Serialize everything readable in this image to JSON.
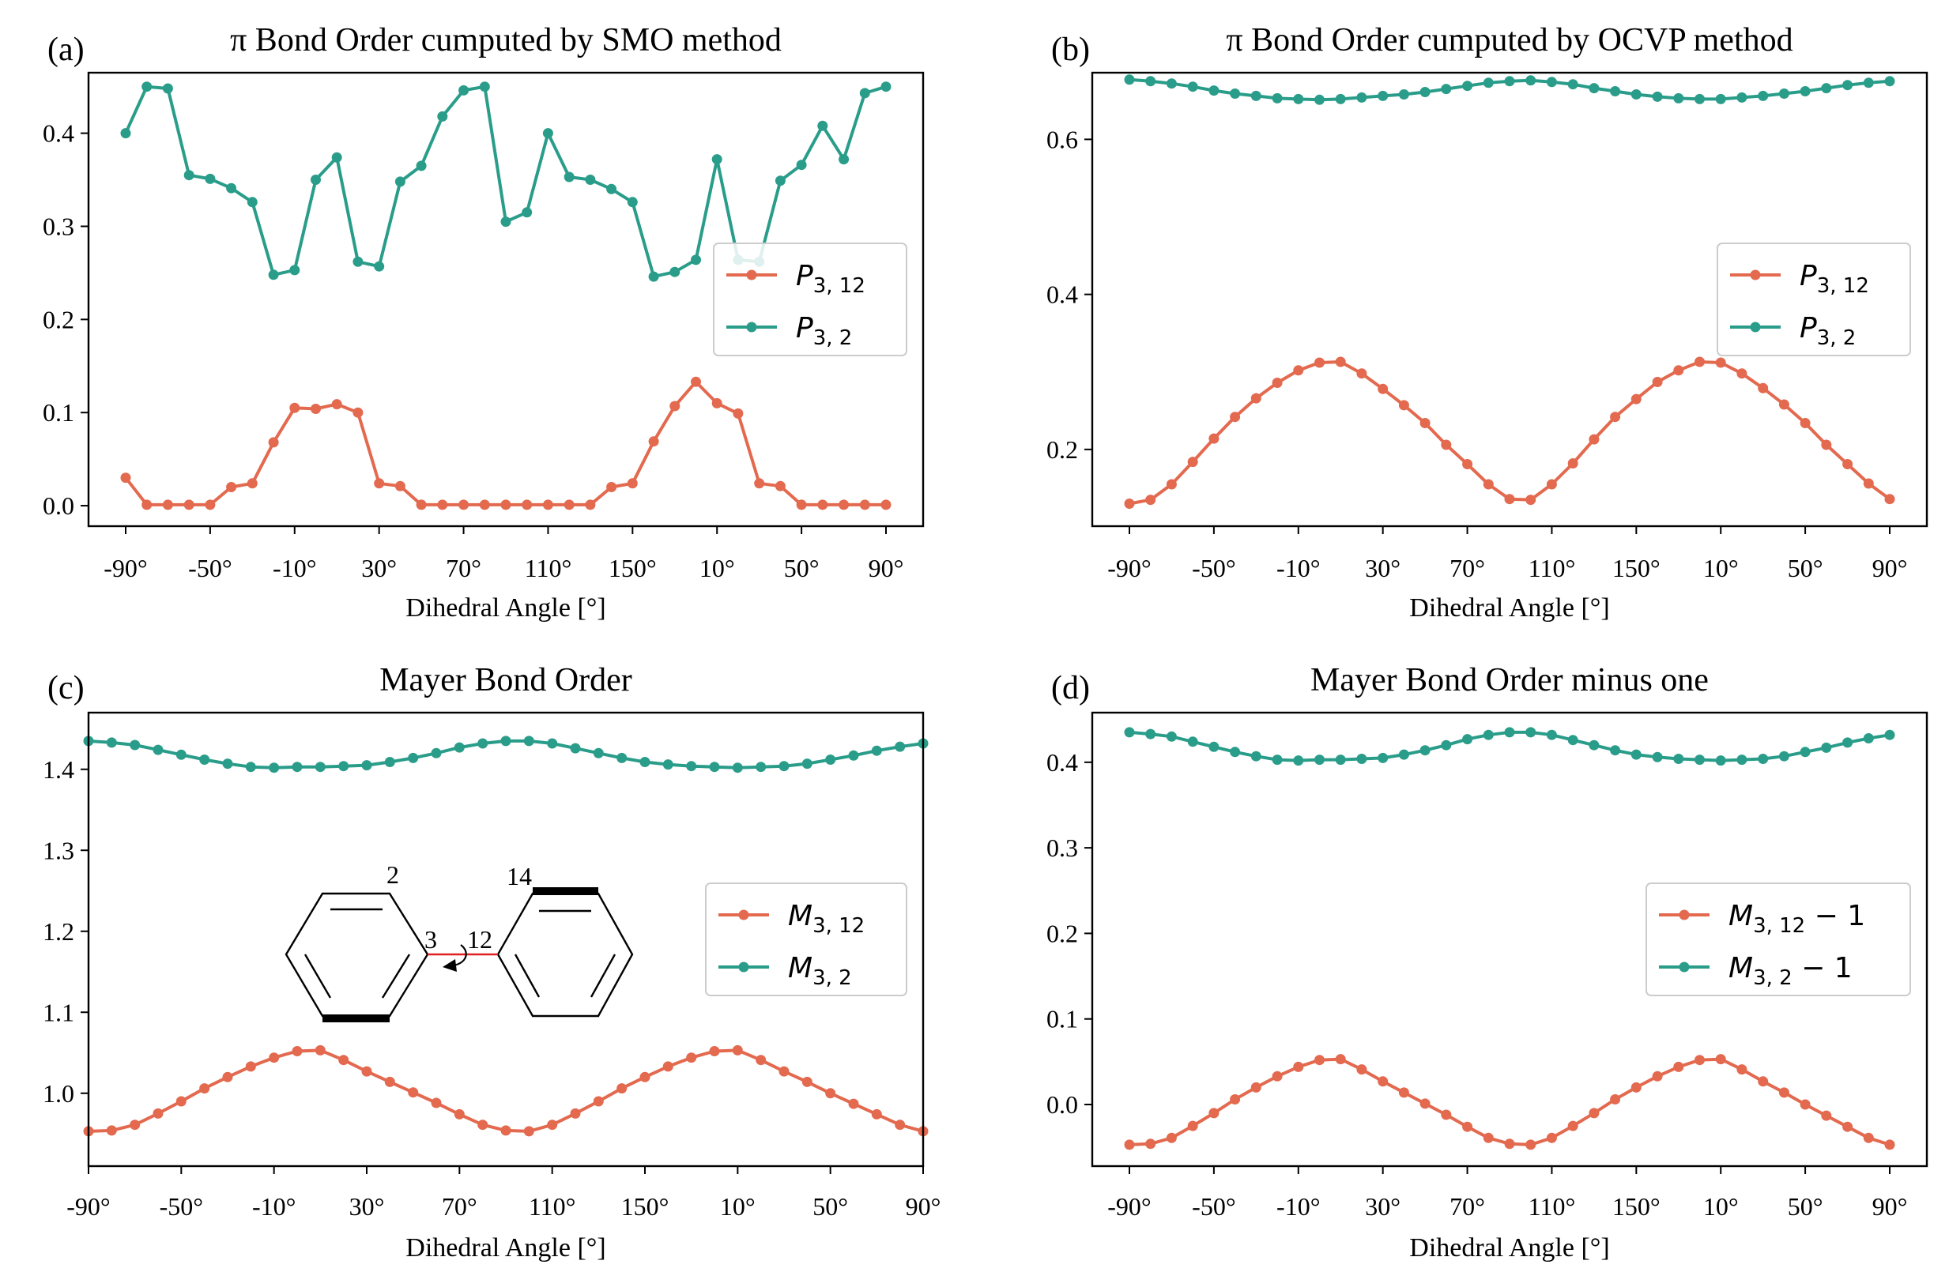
{
  "figure": {
    "colors": {
      "orange": "#e3694f",
      "teal": "#2a9d8a",
      "axis": "#000000",
      "legend_border": "#cccccc"
    }
  },
  "chart_data": [
    {
      "panel_label": "(a)",
      "type": "line",
      "title": "π Bond Order cumputed by SMO method",
      "xlabel": "Dihedral Angle [°]",
      "ylabel": "",
      "x": [
        -90,
        -85,
        -80,
        -75,
        -70,
        -65,
        -60,
        -55,
        -50,
        -45,
        -40,
        -35,
        -30,
        -25,
        -20,
        -15,
        -10,
        -5,
        0,
        5,
        10,
        15,
        20,
        25,
        30,
        35,
        40,
        45,
        50,
        55,
        60,
        65,
        70,
        75,
        80,
        85,
        90
      ],
      "xticks": [
        "-90°",
        "-50°",
        "-10°",
        "30°",
        "70°",
        "110°",
        "150°",
        "10°",
        "50°",
        "90°"
      ],
      "yticks": [
        "0.0",
        "0.1",
        "0.2",
        "0.3",
        "0.4"
      ],
      "ylim": [
        -0.022,
        0.465
      ],
      "legend_position": "center-right",
      "series": [
        {
          "name": "P_{3,12}",
          "label_base": "P",
          "label_sub": "3, 12",
          "color": "#e3694f",
          "values": [
            0.03,
            0.001,
            0.001,
            0.001,
            0.001,
            0.02,
            0.024,
            0.068,
            0.105,
            0.104,
            0.109,
            0.1,
            0.024,
            0.021,
            0.001,
            0.001,
            0.001,
            0.001,
            0.001,
            0.001,
            0.001,
            0.001,
            0.001,
            0.02,
            0.024,
            0.069,
            0.107,
            0.133,
            0.11,
            0.099,
            0.024,
            0.021,
            0.001,
            0.001,
            0.001,
            0.001,
            0.001
          ]
        },
        {
          "name": "P_{3,2}",
          "label_base": "P",
          "label_sub": "3, 2",
          "color": "#2a9d8a",
          "values": [
            0.4,
            0.45,
            0.448,
            0.355,
            0.351,
            0.341,
            0.326,
            0.248,
            0.253,
            0.35,
            0.374,
            0.262,
            0.257,
            0.348,
            0.365,
            0.418,
            0.446,
            0.45,
            0.305,
            0.315,
            0.4,
            0.353,
            0.35,
            0.34,
            0.326,
            0.246,
            0.251,
            0.264,
            0.372,
            0.264,
            0.262,
            0.349,
            0.366,
            0.408,
            0.372,
            0.443,
            0.45
          ]
        }
      ]
    },
    {
      "panel_label": "(b)",
      "type": "line",
      "title": "π Bond Order cumputed by OCVP method",
      "xlabel": "Dihedral Angle [°]",
      "ylabel": "",
      "x": [
        -90,
        -85,
        -80,
        -75,
        -70,
        -65,
        -60,
        -55,
        -50,
        -45,
        -40,
        -35,
        -30,
        -25,
        -20,
        -15,
        -10,
        -5,
        0,
        5,
        10,
        15,
        20,
        25,
        30,
        35,
        40,
        45,
        50,
        55,
        60,
        65,
        70,
        75,
        80,
        85,
        90
      ],
      "xticks": [
        "-90°",
        "-50°",
        "-10°",
        "30°",
        "70°",
        "110°",
        "150°",
        "10°",
        "50°",
        "90°"
      ],
      "yticks": [
        "0.2",
        "0.4",
        "0.6"
      ],
      "ylim": [
        0.101,
        0.686
      ],
      "legend_position": "center-right",
      "series": [
        {
          "name": "P_{3,12}",
          "label_base": "P",
          "label_sub": "3, 12",
          "color": "#e3694f",
          "values": [
            0.13,
            0.135,
            0.155,
            0.184,
            0.214,
            0.242,
            0.266,
            0.286,
            0.302,
            0.312,
            0.313,
            0.298,
            0.278,
            0.257,
            0.234,
            0.206,
            0.181,
            0.155,
            0.136,
            0.135,
            0.155,
            0.182,
            0.213,
            0.242,
            0.265,
            0.287,
            0.302,
            0.313,
            0.312,
            0.298,
            0.279,
            0.258,
            0.234,
            0.206,
            0.181,
            0.156,
            0.136
          ]
        },
        {
          "name": "P_{3,2}",
          "label_base": "P",
          "label_sub": "3, 2",
          "color": "#2a9d8a",
          "values": [
            0.677,
            0.675,
            0.672,
            0.668,
            0.663,
            0.659,
            0.656,
            0.653,
            0.652,
            0.651,
            0.652,
            0.654,
            0.656,
            0.658,
            0.661,
            0.665,
            0.669,
            0.673,
            0.675,
            0.676,
            0.674,
            0.671,
            0.666,
            0.662,
            0.658,
            0.655,
            0.653,
            0.652,
            0.652,
            0.654,
            0.656,
            0.659,
            0.662,
            0.666,
            0.67,
            0.673,
            0.675
          ]
        }
      ]
    },
    {
      "panel_label": "(c)",
      "type": "line",
      "title": "Mayer Bond Order",
      "xlabel": "Dihedral Angle [°]",
      "ylabel": "",
      "x": [
        -90,
        -85,
        -80,
        -75,
        -70,
        -65,
        -60,
        -55,
        -50,
        -45,
        -40,
        -35,
        -30,
        -25,
        -20,
        -15,
        -10,
        -5,
        0,
        5,
        10,
        15,
        20,
        25,
        30,
        35,
        40,
        45,
        50,
        55,
        60,
        65,
        70,
        75,
        80,
        85,
        90
      ],
      "xticks": [
        "-90°",
        "-50°",
        "-10°",
        "30°",
        "70°",
        "110°",
        "150°",
        "10°",
        "50°",
        "90°"
      ],
      "yticks": [
        "1.0",
        "1.1",
        "1.2",
        "1.3",
        "1.4"
      ],
      "ylim": [
        0.91,
        1.47
      ],
      "legend_position": "center-right",
      "series": [
        {
          "name": "M_{3,12}",
          "label_base": "M",
          "label_sub": "3, 12",
          "color": "#e3694f",
          "values": [
            0.953,
            0.954,
            0.961,
            0.975,
            0.99,
            1.006,
            1.02,
            1.033,
            1.044,
            1.052,
            1.053,
            1.041,
            1.027,
            1.014,
            1.001,
            0.988,
            0.974,
            0.961,
            0.954,
            0.953,
            0.961,
            0.975,
            0.99,
            1.006,
            1.02,
            1.033,
            1.044,
            1.052,
            1.053,
            1.041,
            1.027,
            1.014,
            1.0,
            0.987,
            0.974,
            0.961,
            0.953
          ]
        },
        {
          "name": "M_{3,2}",
          "label_base": "M",
          "label_sub": "3, 2",
          "color": "#2a9d8a",
          "values": [
            1.435,
            1.433,
            1.43,
            1.424,
            1.418,
            1.412,
            1.407,
            1.403,
            1.402,
            1.403,
            1.403,
            1.404,
            1.405,
            1.409,
            1.414,
            1.42,
            1.427,
            1.432,
            1.435,
            1.435,
            1.432,
            1.426,
            1.42,
            1.414,
            1.409,
            1.406,
            1.404,
            1.403,
            1.402,
            1.403,
            1.404,
            1.407,
            1.412,
            1.417,
            1.423,
            1.428,
            1.432
          ]
        }
      ],
      "inset_molecule": {
        "atom_labels": [
          "2",
          "14",
          "3",
          "12"
        ]
      }
    },
    {
      "panel_label": "(d)",
      "type": "line",
      "title": "Mayer Bond Order minus one",
      "xlabel": "Dihedral Angle [°]",
      "ylabel": "",
      "x": [
        -90,
        -85,
        -80,
        -75,
        -70,
        -65,
        -60,
        -55,
        -50,
        -45,
        -40,
        -35,
        -30,
        -25,
        -20,
        -15,
        -10,
        -5,
        0,
        5,
        10,
        15,
        20,
        25,
        30,
        35,
        40,
        45,
        50,
        55,
        60,
        65,
        70,
        75,
        80,
        85,
        90
      ],
      "xticks": [
        "-90°",
        "-50°",
        "-10°",
        "30°",
        "70°",
        "110°",
        "150°",
        "10°",
        "50°",
        "90°"
      ],
      "yticks": [
        "0.0",
        "0.1",
        "0.2",
        "0.3",
        "0.4"
      ],
      "ylim": [
        -0.072,
        0.458
      ],
      "legend_position": "center-right",
      "series": [
        {
          "name": "M_{3,12} - 1",
          "label_base": "M",
          "label_sub": "3, 12",
          "label_suffix": " − 1",
          "color": "#e3694f",
          "values": [
            -0.047,
            -0.046,
            -0.039,
            -0.025,
            -0.01,
            0.006,
            0.02,
            0.033,
            0.044,
            0.052,
            0.053,
            0.041,
            0.027,
            0.014,
            0.001,
            -0.012,
            -0.026,
            -0.039,
            -0.046,
            -0.047,
            -0.039,
            -0.025,
            -0.01,
            0.006,
            0.02,
            0.033,
            0.044,
            0.052,
            0.053,
            0.041,
            0.027,
            0.014,
            0.0,
            -0.013,
            -0.026,
            -0.039,
            -0.047
          ]
        },
        {
          "name": "M_{3,2} - 1",
          "label_base": "M",
          "label_sub": "3, 2",
          "label_suffix": " − 1",
          "color": "#2a9d8a",
          "values": [
            0.435,
            0.433,
            0.43,
            0.424,
            0.418,
            0.412,
            0.407,
            0.403,
            0.402,
            0.403,
            0.403,
            0.404,
            0.405,
            0.409,
            0.414,
            0.42,
            0.427,
            0.432,
            0.435,
            0.435,
            0.432,
            0.426,
            0.42,
            0.414,
            0.409,
            0.406,
            0.404,
            0.403,
            0.402,
            0.403,
            0.404,
            0.407,
            0.412,
            0.417,
            0.423,
            0.428,
            0.432
          ]
        }
      ]
    }
  ]
}
